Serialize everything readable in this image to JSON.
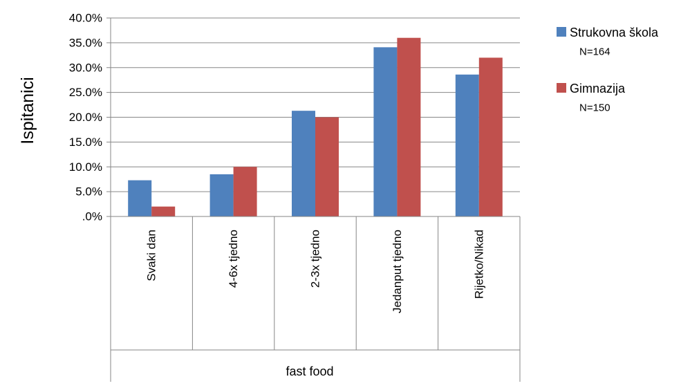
{
  "chart_data": {
    "type": "bar",
    "title": "",
    "ylabel": "Ispitanici",
    "xlabel": "fast food",
    "categories": [
      "Svaki dan",
      "4-6x tjedno",
      "2-3x tjedno",
      "Jedanput tjedno",
      "Rijetko/Nikad"
    ],
    "series": [
      {
        "name": "Strukovna škola",
        "note": "N=164",
        "color": "#4F81BD",
        "values": [
          7.3,
          8.5,
          21.3,
          34.1,
          28.6
        ]
      },
      {
        "name": "Gimnazija",
        "note": "N=150",
        "color": "#C0504D",
        "values": [
          2.0,
          10.0,
          20.0,
          36.0,
          32.0
        ]
      }
    ],
    "ylim": [
      0,
      40
    ],
    "yticks": [
      ".0%",
      "5.0%",
      "10.0%",
      "15.0%",
      "20.0%",
      "25.0%",
      "30.0%",
      "35.0%",
      "40.0%"
    ],
    "grid": true,
    "legend_position": "right"
  }
}
